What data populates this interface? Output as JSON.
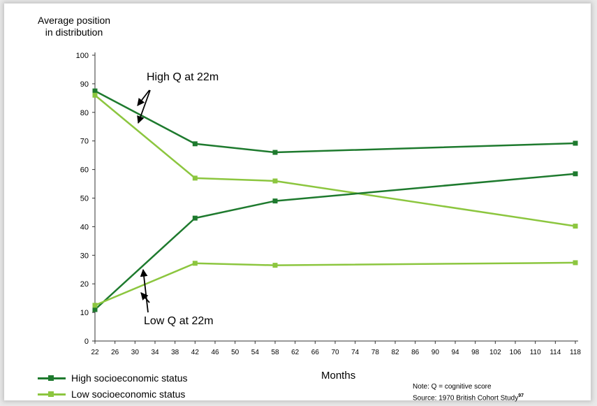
{
  "chart_data": {
    "type": "line",
    "ylabel_line1": "Average position",
    "ylabel_line2": "in distribution",
    "xlabel": "Months",
    "ylim": [
      0,
      100
    ],
    "yticks": [
      0,
      10,
      20,
      30,
      40,
      50,
      60,
      70,
      80,
      90,
      100
    ],
    "xlim": [
      22,
      118
    ],
    "xticks": [
      22,
      26,
      30,
      34,
      38,
      42,
      46,
      50,
      54,
      58,
      62,
      66,
      70,
      74,
      78,
      82,
      86,
      90,
      94,
      98,
      102,
      106,
      110,
      114,
      118
    ],
    "grid": false,
    "series": [
      {
        "group": "high",
        "color": "#1e7a2e",
        "x": [
          22,
          42,
          58,
          118
        ],
        "y": [
          87.5,
          69,
          66,
          69.2
        ]
      },
      {
        "group": "low",
        "color": "#8cc63f",
        "x": [
          22,
          42,
          58,
          118
        ],
        "y": [
          86,
          57,
          56,
          40.2
        ]
      },
      {
        "group": "high",
        "color": "#1e7a2e",
        "x": [
          22,
          42,
          58,
          118
        ],
        "y": [
          11,
          43,
          49,
          58.5
        ]
      },
      {
        "group": "low",
        "color": "#8cc63f",
        "x": [
          22,
          42,
          58,
          118
        ],
        "y": [
          12.5,
          27.2,
          26.5,
          27.4
        ]
      }
    ],
    "annotations": [
      {
        "text": "High Q at 22m"
      },
      {
        "text": "Low Q at 22m"
      }
    ],
    "legend": {
      "placement": "bottom-left",
      "entries": [
        {
          "label": "High socioeconomic status",
          "color": "#1e7a2e"
        },
        {
          "label": "Low socioeconomic status",
          "color": "#8cc63f"
        }
      ]
    },
    "note": "Note: Q = cognitive score",
    "source_text": "Source: 1970 British Cohort Study",
    "source_ref": "97"
  }
}
